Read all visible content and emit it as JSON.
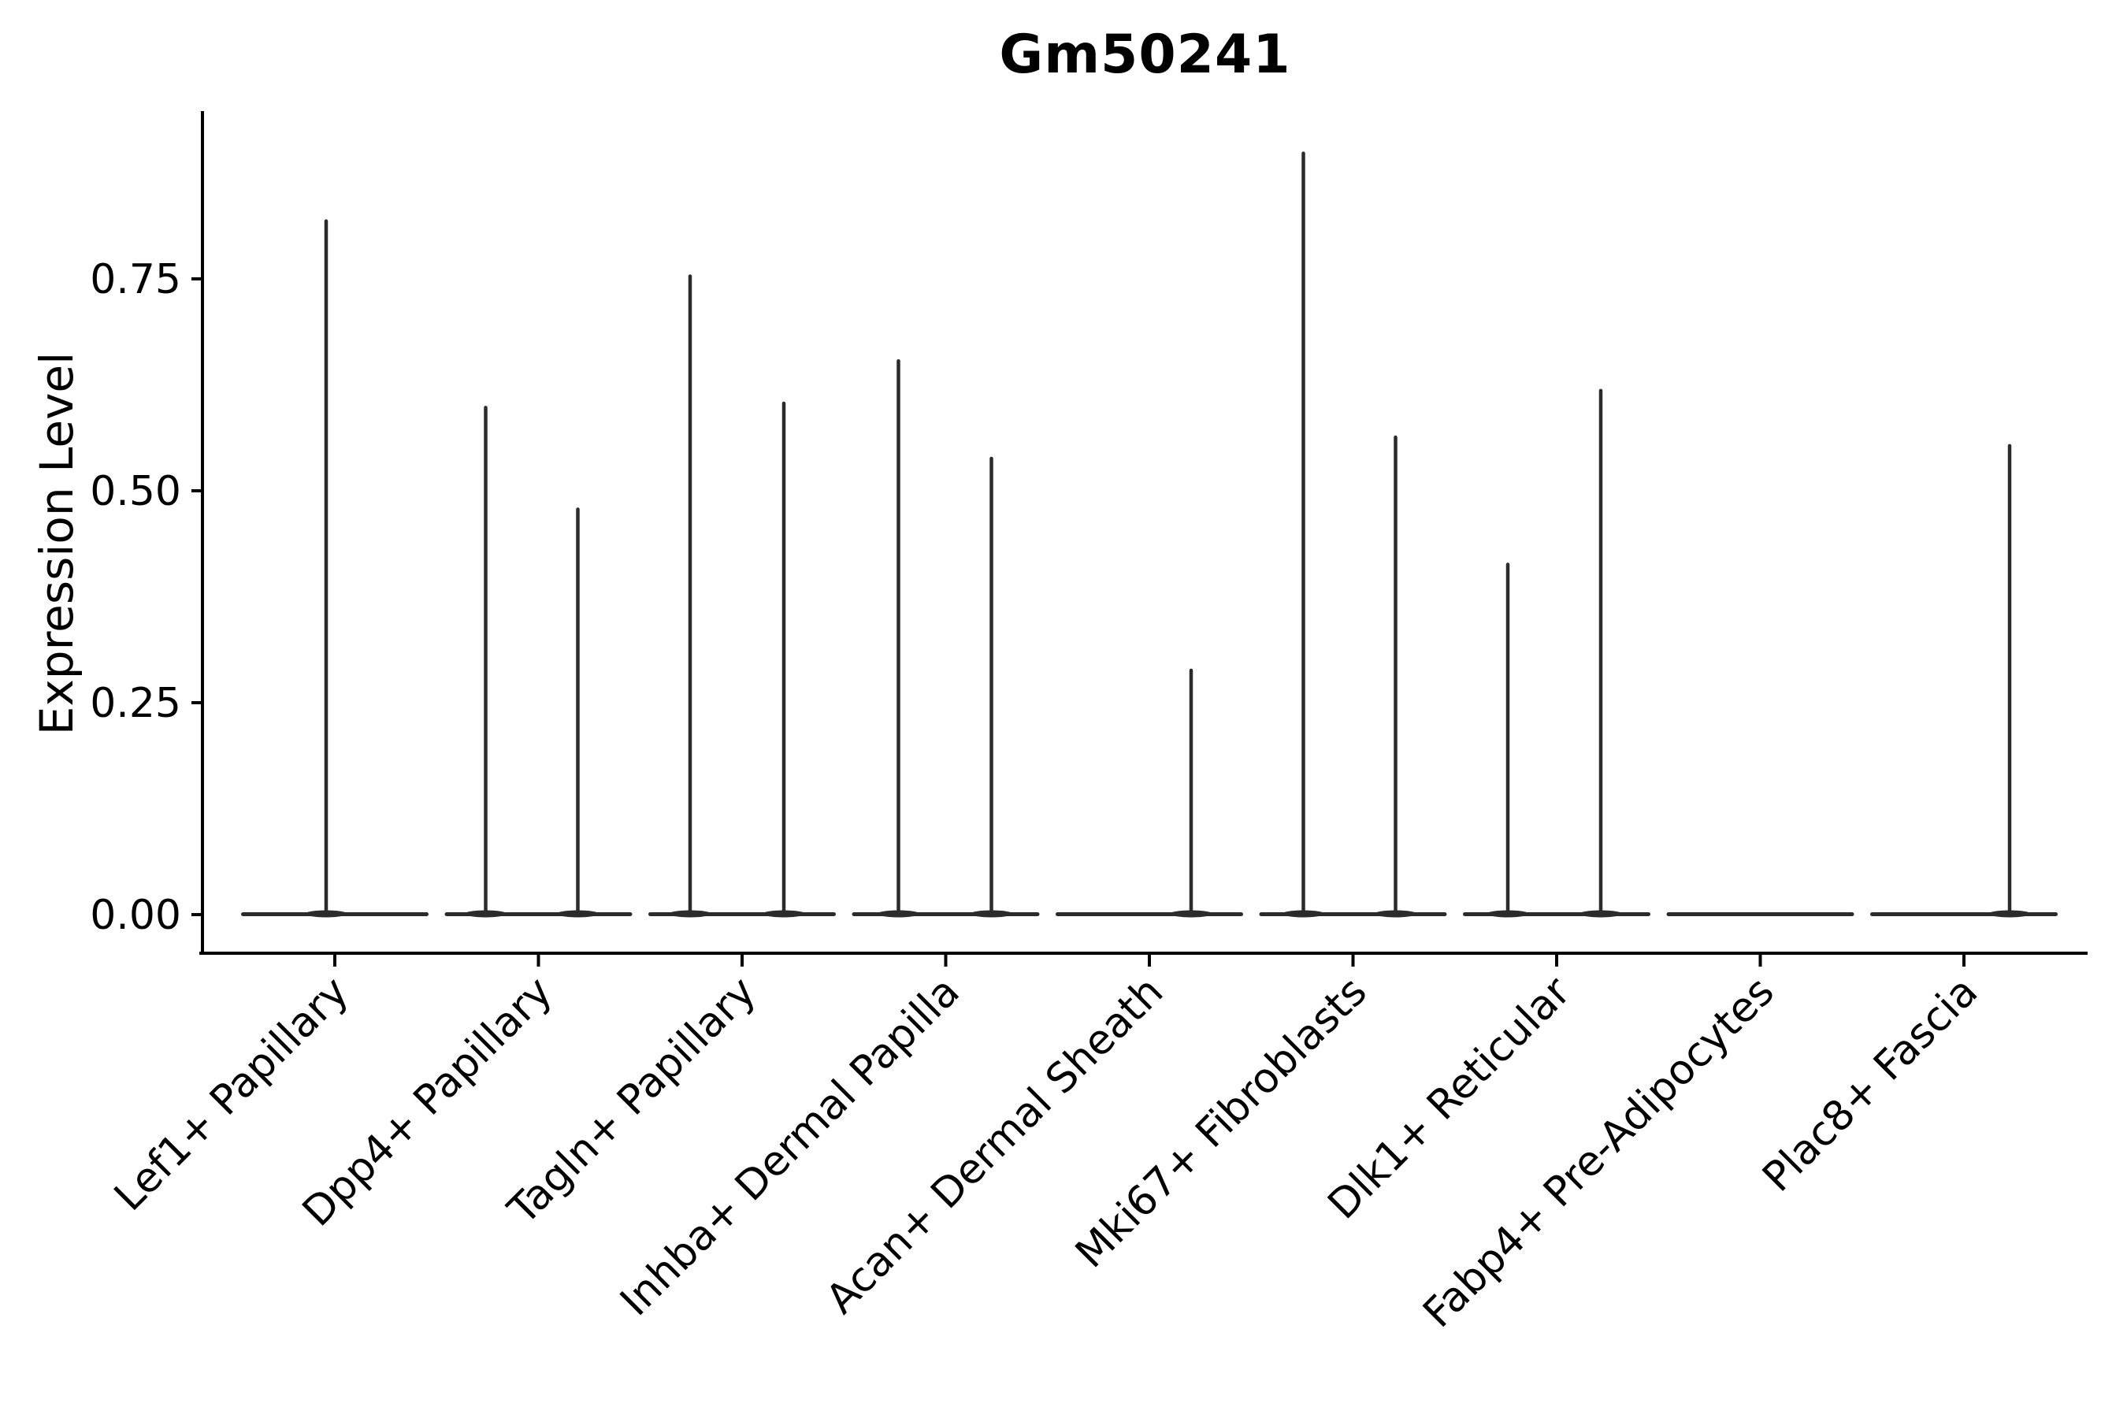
{
  "chart_data": {
    "type": "violin",
    "title": "Gm50241",
    "ylabel": "Expression Level",
    "xlabel": "",
    "grid": false,
    "legend": false,
    "ylim": [
      0,
      0.95
    ],
    "yticks": [
      {
        "value": 0.0,
        "label": "0.00"
      },
      {
        "value": 0.25,
        "label": "0.25"
      },
      {
        "value": 0.5,
        "label": "0.50"
      },
      {
        "value": 0.75,
        "label": "0.75"
      }
    ],
    "x_tick_rotation_deg": 45,
    "colors": {
      "violin": "#2b2b2b",
      "axis": "#000000",
      "text": "#000000",
      "background": "#ffffff"
    },
    "note": "Each category shows a mostly-zero expression violin: a flat base at 0 with thin spikes reaching the max expression values",
    "categories": [
      {
        "label": "Lef1+ Papillary",
        "spikes": [
          {
            "dx": -11,
            "value": 0.82
          }
        ]
      },
      {
        "label": "Dpp4+ Papillary",
        "spikes": [
          {
            "dx": -67,
            "value": 0.6
          },
          {
            "dx": 50,
            "value": 0.48
          }
        ]
      },
      {
        "label": "Tagln+ Papillary",
        "spikes": [
          {
            "dx": -66,
            "value": 0.755
          },
          {
            "dx": 53,
            "value": 0.605
          }
        ]
      },
      {
        "label": "Inhba+ Dermal Papilla",
        "spikes": [
          {
            "dx": -60,
            "value": 0.655
          },
          {
            "dx": 58,
            "value": 0.54
          }
        ]
      },
      {
        "label": "Acan+ Dermal Sheath",
        "spikes": [
          {
            "dx": 53,
            "value": 0.29
          }
        ]
      },
      {
        "label": "Mki67+ Fibroblasts",
        "spikes": [
          {
            "dx": -63,
            "value": 0.9
          },
          {
            "dx": 54,
            "value": 0.565
          }
        ]
      },
      {
        "label": "Dlk1+ Reticular",
        "spikes": [
          {
            "dx": -62,
            "value": 0.415
          },
          {
            "dx": 56,
            "value": 0.62
          }
        ]
      },
      {
        "label": "Fabp4+ Pre-Adipocytes",
        "spikes": []
      },
      {
        "label": "Plac8+ Fascia",
        "spikes": [
          {
            "dx": 58,
            "value": 0.555
          }
        ]
      }
    ]
  }
}
